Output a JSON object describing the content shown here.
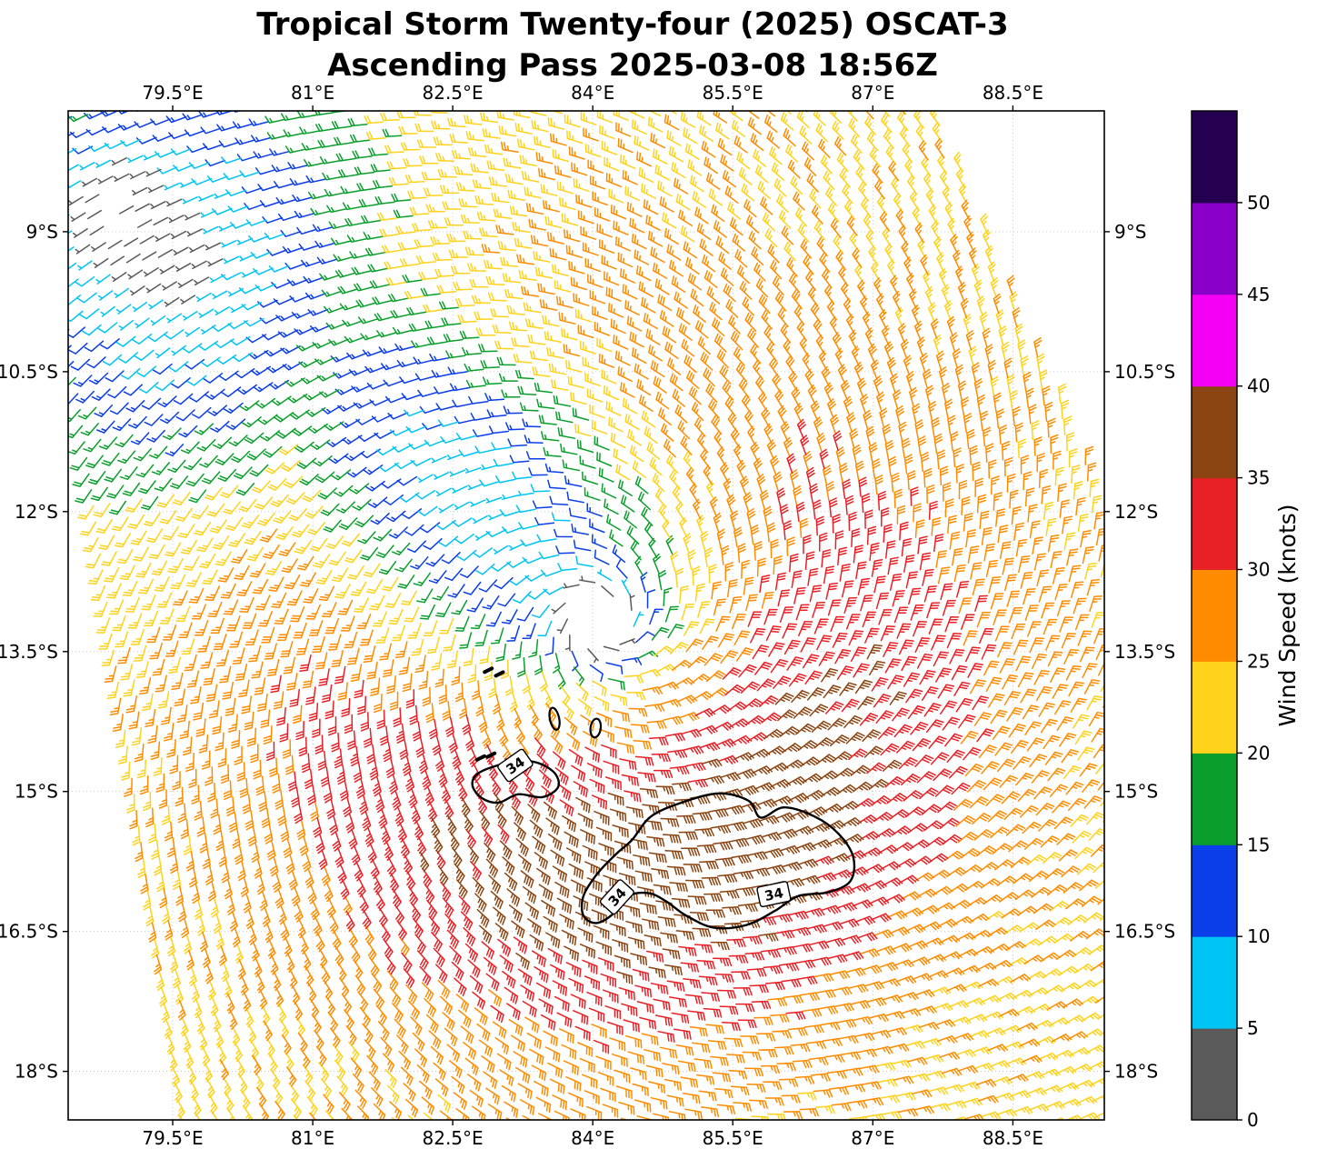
{
  "chart_data": {
    "type": "wind_barbs_map",
    "title": "Tropical Storm Twenty-four (2025) OSCAT-3",
    "subtitle": "Ascending Pass 2025-03-08 18:56Z",
    "satellite": "OSCAT-3",
    "pass_type": "Ascending",
    "datetime_utc": "2025-03-08 18:56Z",
    "storm": {
      "name": "Tropical Storm Twenty-four",
      "year": 2025,
      "center_lon_e": 84.1,
      "center_lat_s": 13.2
    },
    "x_axis": {
      "range_lon_e": [
        78.38,
        89.48
      ],
      "ticks": [
        {
          "value": 79.5,
          "label": "79.5°E"
        },
        {
          "value": 81.0,
          "label": "81°E"
        },
        {
          "value": 82.5,
          "label": "82.5°E"
        },
        {
          "value": 84.0,
          "label": "84°E"
        },
        {
          "value": 85.5,
          "label": "85.5°E"
        },
        {
          "value": 87.0,
          "label": "87°E"
        },
        {
          "value": 88.5,
          "label": "88.5°E"
        }
      ]
    },
    "y_axis": {
      "range_lat_s": [
        7.705,
        18.52
      ],
      "ticks": [
        {
          "value": 9.0,
          "label": "9°S"
        },
        {
          "value": 10.5,
          "label": "10.5°S"
        },
        {
          "value": 12.0,
          "label": "12°S"
        },
        {
          "value": 13.5,
          "label": "13.5°S"
        },
        {
          "value": 15.0,
          "label": "15°S"
        },
        {
          "value": 16.5,
          "label": "16.5°S"
        },
        {
          "value": 18.0,
          "label": "18°S"
        }
      ]
    },
    "colorbar": {
      "label": "Wind Speed (knots)",
      "units": "knots",
      "tick_values": [
        0,
        5,
        10,
        15,
        20,
        25,
        30,
        35,
        40,
        45,
        50
      ],
      "segments": [
        {
          "range": [
            0,
            5
          ],
          "color": "#5A5A5A"
        },
        {
          "range": [
            5,
            10
          ],
          "color": "#00C4F4"
        },
        {
          "range": [
            10,
            15
          ],
          "color": "#0B3DE8"
        },
        {
          "range": [
            15,
            20
          ],
          "color": "#0A9F2C"
        },
        {
          "range": [
            20,
            25
          ],
          "color": "#FFD21C"
        },
        {
          "range": [
            25,
            30
          ],
          "color": "#FF8C00"
        },
        {
          "range": [
            30,
            35
          ],
          "color": "#E82127"
        },
        {
          "range": [
            35,
            40
          ],
          "color": "#8B4513"
        },
        {
          "range": [
            40,
            45
          ],
          "color": "#F400F4"
        },
        {
          "range": [
            45,
            50
          ],
          "color": "#8A00C8"
        },
        {
          "range": [
            50,
            55
          ],
          "color": "#250051"
        }
      ]
    },
    "wind_field_model": {
      "center_lon_e": 84.1,
      "center_lat_s": 13.2,
      "base_kt": 24,
      "eye_sigma_deg": 0.42,
      "ring_amp_kt": 15,
      "ring_radius_deg": 2.6,
      "ring_width_deg": 1.9,
      "ring_phase_rad": 1.25,
      "ring_sharpness": 1.6,
      "ring_floor": 0.25,
      "ring_gain": 0.75,
      "inflow": 0.35,
      "weak_blob_nw": {
        "lon": 79.7,
        "lat_s": 9.4,
        "sx": 2.0,
        "sy": 2.2,
        "amp": 19
      },
      "weak_blob_spiral": {
        "lon": 82.7,
        "lat_s": 11.7,
        "sa": 2.4,
        "sb": 1.35,
        "amp": 21,
        "axis": [
          0.69,
          0.72
        ]
      },
      "calm_spot": {
        "lon": 78.8,
        "lat_s": 8.7,
        "sigma": 0.75,
        "amp": 9
      },
      "jitter_kt": 1.2,
      "max_kt": 39.4,
      "eye_gap_deg": 0.19
    },
    "barb_grid": {
      "spacing_deg": 0.1735,
      "tilt_deg": 8,
      "origin_lon_e": 78.0,
      "origin_lat_s": 7.3
    },
    "swath_edge": {
      "p1": [
        87.7,
        7.7
      ],
      "p2": [
        89.5,
        12.0
      ]
    },
    "contours_34kt": {
      "label": "34",
      "threshold_kt": 34,
      "polygons": {
        "west": [
          [
            82.78,
            14.8
          ],
          [
            83.06,
            14.7
          ],
          [
            83.36,
            14.68
          ],
          [
            83.58,
            14.79
          ],
          [
            83.63,
            14.95
          ],
          [
            83.46,
            15.06
          ],
          [
            83.2,
            15.03
          ],
          [
            82.99,
            15.12
          ],
          [
            82.81,
            15.07
          ],
          [
            82.71,
            14.93
          ]
        ],
        "main": [
          [
            84.42,
            15.52
          ],
          [
            84.62,
            15.27
          ],
          [
            84.95,
            15.12
          ],
          [
            85.35,
            15.02
          ],
          [
            85.67,
            15.1
          ],
          [
            85.8,
            15.28
          ],
          [
            86.05,
            15.17
          ],
          [
            86.38,
            15.27
          ],
          [
            86.63,
            15.45
          ],
          [
            86.79,
            15.7
          ],
          [
            86.76,
            15.96
          ],
          [
            86.52,
            16.08
          ],
          [
            86.2,
            16.12
          ],
          [
            85.95,
            16.28
          ],
          [
            85.65,
            16.43
          ],
          [
            85.3,
            16.46
          ],
          [
            85.0,
            16.33
          ],
          [
            84.79,
            16.18
          ],
          [
            84.6,
            16.09
          ],
          [
            84.38,
            16.12
          ],
          [
            84.22,
            16.31
          ],
          [
            84.04,
            16.41
          ],
          [
            83.9,
            16.33
          ],
          [
            83.9,
            16.12
          ],
          [
            84.05,
            15.88
          ],
          [
            84.25,
            15.67
          ]
        ]
      },
      "small_ellipses": [
        {
          "lon": 83.59,
          "lat_s": 14.22,
          "rx_deg": 0.05,
          "ry_deg": 0.12,
          "rot_deg": -12
        },
        {
          "lon": 84.03,
          "lat_s": 14.32,
          "rx_deg": 0.055,
          "ry_deg": 0.1,
          "rot_deg": 8
        }
      ],
      "specks": [
        [
          82.88,
          13.7
        ],
        [
          83.0,
          13.74
        ],
        [
          82.8,
          14.64
        ],
        [
          82.91,
          14.61
        ]
      ],
      "labels": [
        {
          "lon": 83.17,
          "lat_s": 14.72,
          "rot_deg": -35
        },
        {
          "lon": 84.26,
          "lat_s": 16.13,
          "rot_deg": -48
        },
        {
          "lon": 85.94,
          "lat_s": 16.1,
          "rot_deg": -12
        }
      ]
    }
  }
}
